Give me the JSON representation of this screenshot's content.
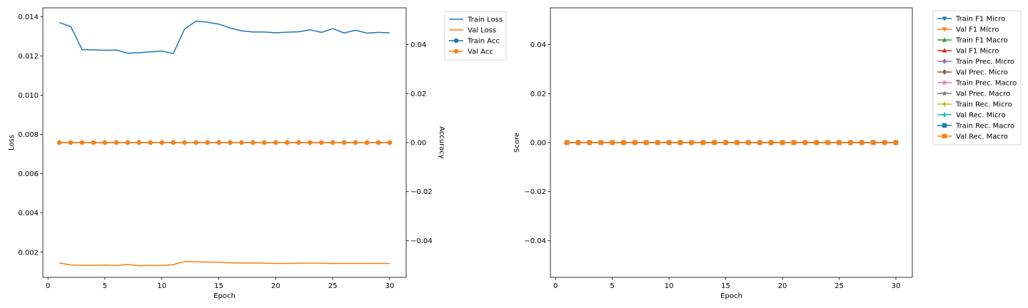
{
  "chart_data": [
    {
      "type": "line",
      "x": [
        1,
        2,
        3,
        4,
        5,
        6,
        7,
        8,
        9,
        10,
        11,
        12,
        13,
        14,
        15,
        16,
        17,
        18,
        19,
        20,
        21,
        22,
        23,
        24,
        25,
        26,
        27,
        28,
        29,
        30
      ],
      "xlabel": "Epoch",
      "ylabel": "Loss",
      "y2label": "Accuracy",
      "xlim": [
        -0.45,
        31.45
      ],
      "ylim": [
        0.00072,
        0.01445
      ],
      "y2lim": [
        -0.055,
        0.055
      ],
      "xticks": [
        0,
        5,
        10,
        15,
        20,
        25,
        30
      ],
      "yticks": [
        0.002,
        0.004,
        0.006,
        0.008,
        0.01,
        0.012,
        0.014
      ],
      "y2ticks": [
        -0.04,
        -0.02,
        0.0,
        0.02,
        0.04
      ],
      "xtick_labels": [
        "0",
        "5",
        "10",
        "15",
        "20",
        "25",
        "30"
      ],
      "ytick_labels": [
        "0.002",
        "0.004",
        "0.006",
        "0.008",
        "0.010",
        "0.012",
        "0.014"
      ],
      "y2tick_labels": [
        "−0.04",
        "−0.02",
        "0.00",
        "0.02",
        "0.04"
      ],
      "legend_position": "outside-top-right",
      "grid": false,
      "series": [
        {
          "name": "Train Loss",
          "axis": "left",
          "marker": "none",
          "color": "#1f77b4",
          "values": [
            0.0137,
            0.0135,
            0.01232,
            0.01231,
            0.01229,
            0.0123,
            0.01214,
            0.01216,
            0.01221,
            0.01225,
            0.01212,
            0.01338,
            0.01378,
            0.01372,
            0.01362,
            0.01342,
            0.01328,
            0.01322,
            0.01322,
            0.01318,
            0.01321,
            0.01323,
            0.01333,
            0.0132,
            0.01339,
            0.01317,
            0.01331,
            0.01316,
            0.0132,
            0.01318
          ]
        },
        {
          "name": "Val Loss",
          "axis": "left",
          "marker": "none",
          "color": "#ff7f0e",
          "values": [
            0.00145,
            0.00135,
            0.00133,
            0.00133,
            0.00134,
            0.00132,
            0.00138,
            0.00131,
            0.00133,
            0.00132,
            0.00137,
            0.00153,
            0.00151,
            0.0015,
            0.00149,
            0.00146,
            0.00145,
            0.00145,
            0.00144,
            0.00143,
            0.00143,
            0.00144,
            0.00144,
            0.00144,
            0.00143,
            0.00143,
            0.00143,
            0.00143,
            0.00143,
            0.00143
          ]
        },
        {
          "name": "Train Acc",
          "axis": "right",
          "marker": "circle",
          "color": "#1f77b4",
          "values": [
            0,
            0,
            0,
            0,
            0,
            0,
            0,
            0,
            0,
            0,
            0,
            0,
            0,
            0,
            0,
            0,
            0,
            0,
            0,
            0,
            0,
            0,
            0,
            0,
            0,
            0,
            0,
            0,
            0,
            0
          ]
        },
        {
          "name": "Val Acc",
          "axis": "right",
          "marker": "circle",
          "color": "#ff7f0e",
          "values": [
            0,
            0,
            0,
            0,
            0,
            0,
            0,
            0,
            0,
            0,
            0,
            0,
            0,
            0,
            0,
            0,
            0,
            0,
            0,
            0,
            0,
            0,
            0,
            0,
            0,
            0,
            0,
            0,
            0,
            0
          ]
        }
      ]
    },
    {
      "type": "line",
      "x": [
        1,
        2,
        3,
        4,
        5,
        6,
        7,
        8,
        9,
        10,
        11,
        12,
        13,
        14,
        15,
        16,
        17,
        18,
        19,
        20,
        21,
        22,
        23,
        24,
        25,
        26,
        27,
        28,
        29,
        30
      ],
      "xlabel": "Epoch",
      "ylabel": "Score",
      "xlim": [
        -0.45,
        31.45
      ],
      "ylim": [
        -0.055,
        0.055
      ],
      "xticks": [
        0,
        5,
        10,
        15,
        20,
        25,
        30
      ],
      "yticks": [
        -0.04,
        -0.02,
        0.0,
        0.02,
        0.04
      ],
      "xtick_labels": [
        "0",
        "5",
        "10",
        "15",
        "20",
        "25",
        "30"
      ],
      "ytick_labels": [
        "−0.04",
        "−0.02",
        "0.00",
        "0.02",
        "0.04"
      ],
      "legend_position": "outside-top-right",
      "grid": false,
      "series": [
        {
          "name": "Train F1 Micro",
          "marker": "triangle-down",
          "color": "#1f77b4",
          "values": [
            0,
            0,
            0,
            0,
            0,
            0,
            0,
            0,
            0,
            0,
            0,
            0,
            0,
            0,
            0,
            0,
            0,
            0,
            0,
            0,
            0,
            0,
            0,
            0,
            0,
            0,
            0,
            0,
            0,
            0
          ]
        },
        {
          "name": "Val F1 Micro",
          "marker": "triangle-down",
          "color": "#ff7f0e",
          "values": [
            0,
            0,
            0,
            0,
            0,
            0,
            0,
            0,
            0,
            0,
            0,
            0,
            0,
            0,
            0,
            0,
            0,
            0,
            0,
            0,
            0,
            0,
            0,
            0,
            0,
            0,
            0,
            0,
            0,
            0
          ]
        },
        {
          "name": "Train F1 Macro",
          "marker": "triangle-up",
          "color": "#2ca02c",
          "values": [
            0,
            0,
            0,
            0,
            0,
            0,
            0,
            0,
            0,
            0,
            0,
            0,
            0,
            0,
            0,
            0,
            0,
            0,
            0,
            0,
            0,
            0,
            0,
            0,
            0,
            0,
            0,
            0,
            0,
            0
          ]
        },
        {
          "name": "Val F1 Micro",
          "marker": "triangle-up",
          "color": "#d62728",
          "values": [
            0,
            0,
            0,
            0,
            0,
            0,
            0,
            0,
            0,
            0,
            0,
            0,
            0,
            0,
            0,
            0,
            0,
            0,
            0,
            0,
            0,
            0,
            0,
            0,
            0,
            0,
            0,
            0,
            0,
            0
          ]
        },
        {
          "name": "Train Prec. Micro",
          "marker": "diamond",
          "color": "#9467bd",
          "values": [
            0,
            0,
            0,
            0,
            0,
            0,
            0,
            0,
            0,
            0,
            0,
            0,
            0,
            0,
            0,
            0,
            0,
            0,
            0,
            0,
            0,
            0,
            0,
            0,
            0,
            0,
            0,
            0,
            0,
            0
          ]
        },
        {
          "name": "Val Prec. Micro",
          "marker": "diamond",
          "color": "#8c564b",
          "values": [
            0,
            0,
            0,
            0,
            0,
            0,
            0,
            0,
            0,
            0,
            0,
            0,
            0,
            0,
            0,
            0,
            0,
            0,
            0,
            0,
            0,
            0,
            0,
            0,
            0,
            0,
            0,
            0,
            0,
            0
          ]
        },
        {
          "name": "Train Prec. Macro",
          "marker": "star",
          "color": "#e377c2",
          "values": [
            0,
            0,
            0,
            0,
            0,
            0,
            0,
            0,
            0,
            0,
            0,
            0,
            0,
            0,
            0,
            0,
            0,
            0,
            0,
            0,
            0,
            0,
            0,
            0,
            0,
            0,
            0,
            0,
            0,
            0
          ]
        },
        {
          "name": "Val Prec. Macro",
          "marker": "star",
          "color": "#7f7f7f",
          "values": [
            0,
            0,
            0,
            0,
            0,
            0,
            0,
            0,
            0,
            0,
            0,
            0,
            0,
            0,
            0,
            0,
            0,
            0,
            0,
            0,
            0,
            0,
            0,
            0,
            0,
            0,
            0,
            0,
            0,
            0
          ]
        },
        {
          "name": "Train Rec. Micro",
          "marker": "plus",
          "color": "#bcbd22",
          "values": [
            0,
            0,
            0,
            0,
            0,
            0,
            0,
            0,
            0,
            0,
            0,
            0,
            0,
            0,
            0,
            0,
            0,
            0,
            0,
            0,
            0,
            0,
            0,
            0,
            0,
            0,
            0,
            0,
            0,
            0
          ]
        },
        {
          "name": "Val Rec. Micro",
          "marker": "plus",
          "color": "#17becf",
          "values": [
            0,
            0,
            0,
            0,
            0,
            0,
            0,
            0,
            0,
            0,
            0,
            0,
            0,
            0,
            0,
            0,
            0,
            0,
            0,
            0,
            0,
            0,
            0,
            0,
            0,
            0,
            0,
            0,
            0,
            0
          ]
        },
        {
          "name": "Train Rec. Macro",
          "marker": "square",
          "color": "#1f77b4",
          "values": [
            0,
            0,
            0,
            0,
            0,
            0,
            0,
            0,
            0,
            0,
            0,
            0,
            0,
            0,
            0,
            0,
            0,
            0,
            0,
            0,
            0,
            0,
            0,
            0,
            0,
            0,
            0,
            0,
            0,
            0
          ]
        },
        {
          "name": "Val Rec. Macro",
          "marker": "square",
          "color": "#ff7f0e",
          "values": [
            0,
            0,
            0,
            0,
            0,
            0,
            0,
            0,
            0,
            0,
            0,
            0,
            0,
            0,
            0,
            0,
            0,
            0,
            0,
            0,
            0,
            0,
            0,
            0,
            0,
            0,
            0,
            0,
            0,
            0
          ]
        }
      ]
    }
  ]
}
